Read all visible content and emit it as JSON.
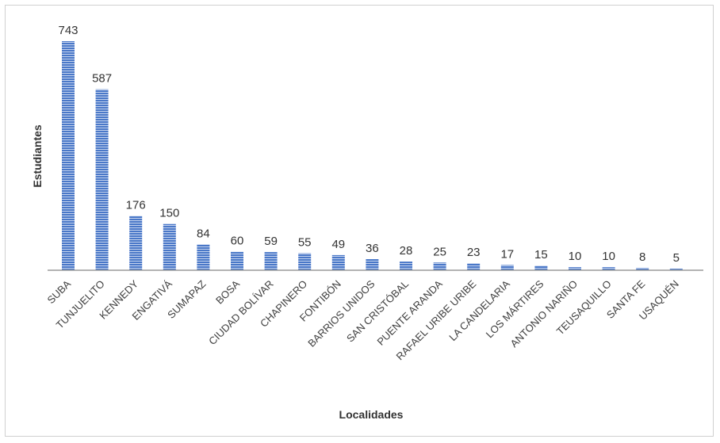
{
  "chart_data": {
    "type": "bar",
    "title": "",
    "xlabel": "Localidades",
    "ylabel": "Estudiantes",
    "categories": [
      "SUBA",
      "TUNJUELITO",
      "KENNEDY",
      "ENGATIVÁ",
      "SUMAPAZ",
      "BOSA",
      "CIUDAD BOLÍVAR",
      "CHAPINERO",
      "FONTIBÓN",
      "BARRIOS UNIDOS",
      "SAN CRISTÓBAL",
      "PUENTE ARANDA",
      "RAFAEL URIBE URIBE",
      "LA CANDELARIA",
      "LOS MÁRTIRES",
      "ANTONIO NARIÑO",
      "TEUSAQUILLO",
      "SANTA FE",
      "USAQUÉN"
    ],
    "values": [
      743,
      587,
      176,
      150,
      84,
      60,
      59,
      55,
      49,
      36,
      28,
      25,
      23,
      17,
      15,
      10,
      10,
      8,
      5
    ],
    "ylim": [
      0,
      743
    ],
    "grid": false,
    "legend": "none",
    "bar_color": "#4472c4",
    "bar_pattern": "horizontal-stripes"
  }
}
